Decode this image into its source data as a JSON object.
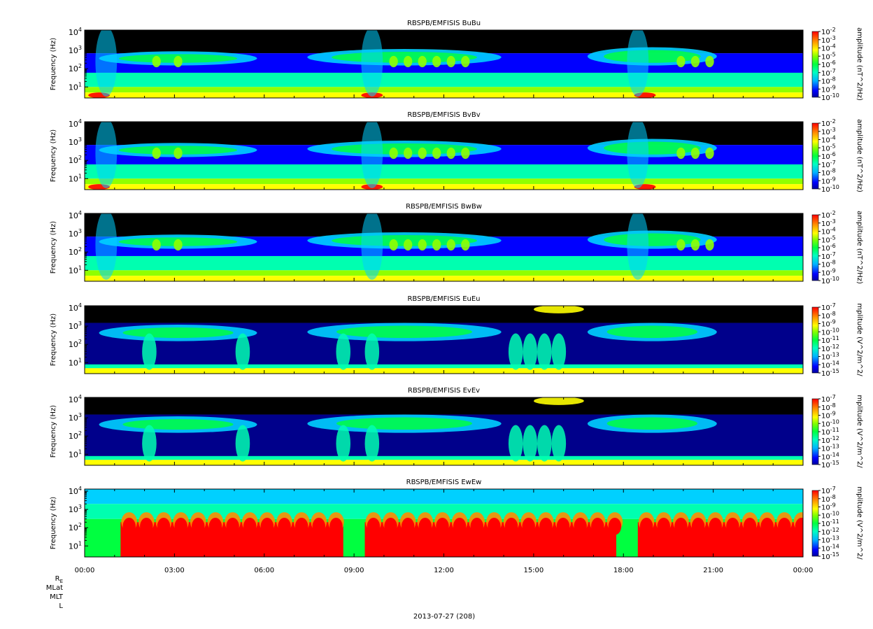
{
  "chart_data": [
    {
      "type": "heatmap",
      "title": "RBSPB/EMFISIS  BuBu",
      "ylabel": "Frequency (Hz)",
      "yscale": "log",
      "yticks": [
        {
          "value": 10,
          "exp": "1"
        },
        {
          "value": 100,
          "exp": "2"
        },
        {
          "value": 1000,
          "exp": "3"
        },
        {
          "value": 10000,
          "exp": "4"
        }
      ],
      "colorbar": {
        "label": "amplitude (nT^2/Hz)",
        "scale": "log",
        "range": [
          1e-10,
          0.01
        ],
        "tick_exponents": [
          "-2",
          "-3",
          "-4",
          "-5",
          "-6",
          "-7",
          "-8",
          "-9",
          "-10"
        ]
      }
    },
    {
      "type": "heatmap",
      "title": "RBSPB/EMFISIS  BvBv",
      "ylabel": "Frequency (Hz)",
      "yscale": "log",
      "yticks": [
        {
          "value": 10,
          "exp": "1"
        },
        {
          "value": 100,
          "exp": "2"
        },
        {
          "value": 1000,
          "exp": "3"
        },
        {
          "value": 10000,
          "exp": "4"
        }
      ],
      "colorbar": {
        "label": "amplitude (nT^2/Hz)",
        "scale": "log",
        "range": [
          1e-10,
          0.01
        ],
        "tick_exponents": [
          "-2",
          "-3",
          "-4",
          "-5",
          "-6",
          "-7",
          "-8",
          "-9",
          "-10"
        ]
      }
    },
    {
      "type": "heatmap",
      "title": "RBSPB/EMFISIS  BwBw",
      "ylabel": "Frequency (Hz)",
      "yscale": "log",
      "yticks": [
        {
          "value": 10,
          "exp": "1"
        },
        {
          "value": 100,
          "exp": "2"
        },
        {
          "value": 1000,
          "exp": "3"
        },
        {
          "value": 10000,
          "exp": "4"
        }
      ],
      "colorbar": {
        "label": "amplitude (nT^2/Hz)",
        "scale": "log",
        "range": [
          1e-10,
          0.01
        ],
        "tick_exponents": [
          "-2",
          "-3",
          "-4",
          "-5",
          "-6",
          "-7",
          "-8",
          "-9",
          "-10"
        ]
      }
    },
    {
      "type": "heatmap",
      "title": "RBSPB/EMFISIS  EuEu",
      "ylabel": "Frequency (Hz)",
      "yscale": "log",
      "yticks": [
        {
          "value": 10,
          "exp": "1"
        },
        {
          "value": 100,
          "exp": "2"
        },
        {
          "value": 1000,
          "exp": "3"
        },
        {
          "value": 10000,
          "exp": "4"
        }
      ],
      "colorbar": {
        "label": "mplitude (V^2/m^2/",
        "scale": "log",
        "range": [
          1e-15,
          1e-07
        ],
        "tick_exponents": [
          "-7",
          "-8",
          "-9",
          "-10",
          "-11",
          "-12",
          "-13",
          "-14",
          "-15"
        ]
      }
    },
    {
      "type": "heatmap",
      "title": "RBSPB/EMFISIS  EvEv",
      "ylabel": "Frequency (Hz)",
      "yscale": "log",
      "yticks": [
        {
          "value": 10,
          "exp": "1"
        },
        {
          "value": 100,
          "exp": "2"
        },
        {
          "value": 1000,
          "exp": "3"
        },
        {
          "value": 10000,
          "exp": "4"
        }
      ],
      "colorbar": {
        "label": "mplitude (V^2/m^2/",
        "scale": "log",
        "range": [
          1e-15,
          1e-07
        ],
        "tick_exponents": [
          "-7",
          "-8",
          "-9",
          "-10",
          "-11",
          "-12",
          "-13",
          "-14",
          "-15"
        ]
      }
    },
    {
      "type": "heatmap",
      "title": "RBSPB/EMFISIS  EwEw",
      "ylabel": "Frequency (Hz)",
      "yscale": "log",
      "yticks": [
        {
          "value": 10,
          "exp": "1"
        },
        {
          "value": 100,
          "exp": "2"
        },
        {
          "value": 1000,
          "exp": "3"
        },
        {
          "value": 10000,
          "exp": "4"
        }
      ],
      "colorbar": {
        "label": "mplitude (V^2/m^2/",
        "scale": "log",
        "range": [
          1e-15,
          1e-07
        ],
        "tick_exponents": [
          "-7",
          "-8",
          "-9",
          "-10",
          "-11",
          "-12",
          "-13",
          "-14",
          "-15"
        ]
      }
    }
  ],
  "x_axis": {
    "tick_labels": [
      "00:00",
      "03:00",
      "06:00",
      "09:00",
      "12:00",
      "15:00",
      "18:00",
      "21:00",
      "00:00"
    ],
    "date_label": "2013-07-27 (208)",
    "ephemeris_labels": [
      {
        "base": "R",
        "sub": "E"
      },
      {
        "base": "MLat",
        "sub": ""
      },
      {
        "base": "MLT",
        "sub": ""
      },
      {
        "base": "L",
        "sub": ""
      }
    ]
  },
  "colors": {
    "background": "#ffffff",
    "text": "#000000",
    "colormap": [
      "#000000",
      "#00008b",
      "#0000ff",
      "#00bfff",
      "#00ff80",
      "#80ff00",
      "#ffff00",
      "#ff8000",
      "#ff0000"
    ]
  }
}
